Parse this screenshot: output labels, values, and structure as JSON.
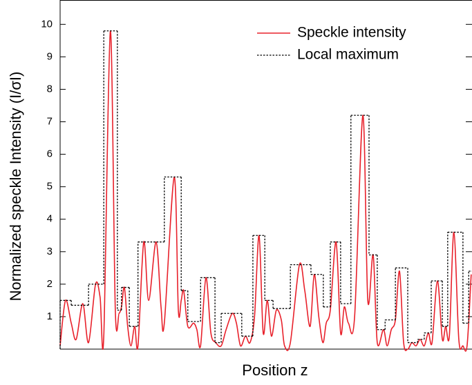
{
  "chart_data": {
    "type": "line",
    "ylabel": "Normalized speckle Intensity (I/σI)",
    "xlabel": "Position z",
    "xlim": [
      0,
      100
    ],
    "ylim": [
      0,
      10.75
    ],
    "yticks": [
      1,
      2,
      3,
      4,
      5,
      6,
      7,
      8,
      9,
      10
    ],
    "legend": "upper right",
    "series": [
      {
        "name": "Speckle intensity",
        "color": "#e8202a",
        "style": "solid",
        "x": [
          0,
          1.3,
          2.7,
          3.9,
          5.5,
          6.9,
          8.6,
          9.7,
          10.6,
          12.2,
          13.4,
          14.3,
          14.9,
          15.6,
          16.4,
          17.2,
          18.1,
          18.9,
          20.3,
          21.5,
          23.3,
          24.5,
          25.3,
          27.7,
          28.7,
          29.4,
          30.0,
          31.0,
          32.4,
          33.2,
          34.1,
          35.4,
          36.6,
          37.8,
          39.1,
          40.3,
          41.8,
          42.8,
          43.8,
          45.0,
          46.1,
          47.2,
          48.3,
          49.3,
          50.3,
          51.3,
          52.5,
          53.7,
          54.5,
          55.9,
          58.1,
          59.4,
          60.7,
          61.7,
          62.8,
          63.8,
          64.6,
          65.6,
          67.0,
          68.1,
          69.0,
          70.0,
          71.5,
          73.5,
          74.7,
          76.0,
          77.0,
          78.5,
          79.4,
          80.4,
          81.4,
          82.4,
          83.4,
          84.4,
          85.4,
          86.4,
          87.4,
          88.4,
          89.4,
          90.3,
          91.6,
          92.8,
          93.6,
          94.5,
          95.6,
          96.8,
          97.8,
          98.8,
          99.8
        ],
        "values": [
          0.1,
          1.5,
          0.8,
          0.3,
          1.4,
          0.2,
          2.0,
          1.6,
          0.4,
          9.8,
          1.2,
          1.1,
          1.3,
          1.9,
          0.7,
          0.1,
          0.7,
          0.1,
          3.3,
          1.5,
          3.3,
          1.3,
          0.8,
          5.3,
          1.2,
          1.5,
          1.8,
          0.7,
          0.8,
          0.6,
          0.1,
          2.2,
          0.5,
          0.2,
          0.1,
          0.6,
          1.1,
          0.8,
          0.1,
          0.4,
          0.2,
          1.0,
          3.5,
          0.5,
          1.5,
          0.4,
          1.2,
          0.9,
          0.1,
          0.2,
          2.6,
          1.8,
          0.7,
          2.3,
          1.0,
          0.2,
          0.8,
          1.2,
          3.3,
          0.5,
          1.3,
          0.8,
          1.0,
          7.2,
          1.5,
          2.9,
          0.2,
          0.6,
          0.1,
          0.6,
          0.9,
          2.4,
          0.2,
          0.0,
          0.2,
          0.1,
          0.3,
          0.1,
          0.5,
          0.2,
          2.1,
          0.3,
          0.7,
          0.4,
          3.6,
          0.3,
          0.1,
          0.1,
          2.3
        ]
      },
      {
        "name": "Local maximum",
        "color": "#000000",
        "style": "step",
        "x": [
          0,
          2.7,
          6.9,
          10.6,
          13.9,
          14.9,
          16.8,
          18.9,
          25.3,
          29.4,
          31.0,
          34.1,
          37.6,
          39.1,
          44.1,
          46.8,
          49.7,
          51.7,
          55.9,
          60.9,
          63.9,
          65.6,
          68.1,
          70.6,
          75.0,
          77.0,
          78.9,
          81.4,
          84.4,
          86.8,
          88.4,
          90.1,
          92.8,
          94.1,
          97.8,
          99.2
        ],
        "values": [
          1.5,
          1.35,
          2.0,
          9.8,
          1.2,
          1.9,
          0.7,
          3.3,
          5.3,
          1.8,
          0.85,
          2.2,
          0.2,
          1.1,
          0.4,
          3.5,
          1.5,
          1.25,
          2.6,
          2.3,
          1.3,
          3.3,
          1.4,
          7.2,
          2.9,
          0.6,
          0.9,
          2.5,
          0.2,
          0.3,
          0.5,
          2.1,
          0.7,
          3.6,
          0.8,
          2.4
        ]
      }
    ]
  }
}
